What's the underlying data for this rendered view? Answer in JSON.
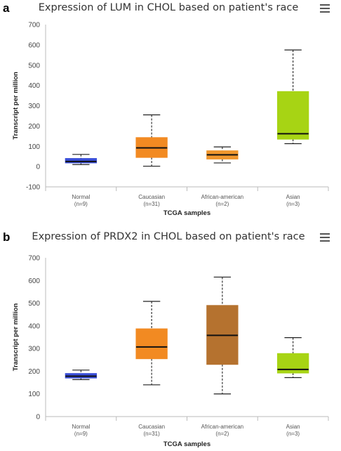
{
  "panels": [
    {
      "letter": "a",
      "title": "Expression of LUM in CHOL based on patient's race",
      "menu_icon": "hamburger-menu-icon",
      "chart_data": {
        "type": "boxplot",
        "title": "Expression of LUM in CHOL based on patient's race",
        "xlabel": "TCGA samples",
        "ylabel": "Transcript per million",
        "ylim": [
          -100,
          700
        ],
        "yticks": [
          -100,
          0,
          100,
          200,
          300,
          400,
          500,
          600,
          700
        ],
        "grid": false,
        "categories": [
          "Normal",
          "Caucasian",
          "African-american",
          "Asian"
        ],
        "counts": [
          "(n=9)",
          "(n=31)",
          "(n=2)",
          "(n=3)"
        ],
        "colors": [
          "#3a4fd8",
          "#f28a22",
          "#f0972e",
          "#a7d414"
        ],
        "boxes": [
          {
            "min": 10,
            "q1": 18,
            "median": 25,
            "q3": 40,
            "max": 60
          },
          {
            "min": 2,
            "q1": 45,
            "median": 92,
            "q3": 143,
            "max": 255
          },
          {
            "min": 18,
            "q1": 37,
            "median": 58,
            "q3": 78,
            "max": 97
          },
          {
            "min": 113,
            "q1": 135,
            "median": 162,
            "q3": 370,
            "max": 575
          }
        ]
      }
    },
    {
      "letter": "b",
      "title": "Expression of PRDX2 in CHOL based on patient's race",
      "menu_icon": "hamburger-menu-icon",
      "chart_data": {
        "type": "boxplot",
        "title": "Expression of PRDX2 in CHOL based on patient's race",
        "xlabel": "TCGA samples",
        "ylabel": "Transcript per million",
        "ylim": [
          0,
          700
        ],
        "yticks": [
          0,
          100,
          200,
          300,
          400,
          500,
          600,
          700
        ],
        "grid": false,
        "categories": [
          "Normal",
          "Caucasian",
          "African-american",
          "Asian"
        ],
        "counts": [
          "(n=9)",
          "(n=31)",
          "(n=2)",
          "(n=3)"
        ],
        "colors": [
          "#3a4fd8",
          "#f28a22",
          "#b5722f",
          "#a7d414"
        ],
        "boxes": [
          {
            "min": 163,
            "q1": 170,
            "median": 178,
            "q3": 190,
            "max": 205
          },
          {
            "min": 140,
            "q1": 255,
            "median": 307,
            "q3": 387,
            "max": 508
          },
          {
            "min": 100,
            "q1": 230,
            "median": 358,
            "q3": 490,
            "max": 615
          },
          {
            "min": 172,
            "q1": 192,
            "median": 208,
            "q3": 278,
            "max": 348
          }
        ]
      }
    }
  ]
}
